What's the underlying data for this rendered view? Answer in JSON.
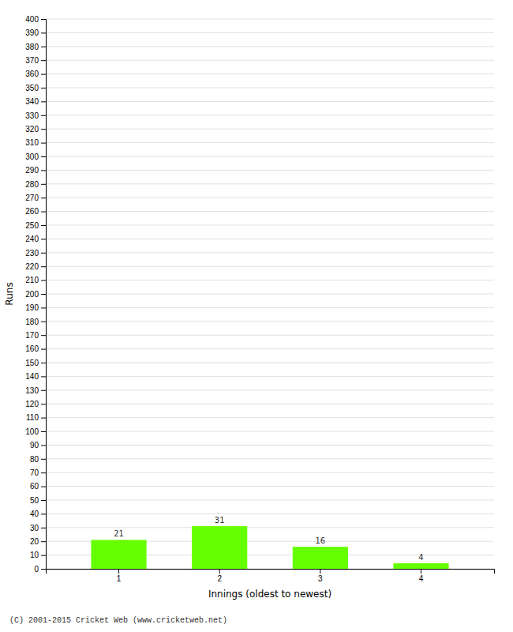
{
  "chart_data": {
    "type": "bar",
    "categories": [
      1,
      2,
      3,
      4
    ],
    "values": [
      21,
      31,
      16,
      4
    ],
    "color": "#66ff00",
    "xlabel": "Innings (oldest to newest)",
    "ylabel": "Runs",
    "ylim": [
      0,
      400
    ],
    "yticks": [
      0,
      10,
      20,
      30,
      40,
      50,
      60,
      70,
      80,
      90,
      100,
      110,
      120,
      130,
      140,
      150,
      160,
      170,
      180,
      190,
      200,
      210,
      220,
      230,
      240,
      250,
      260,
      270,
      280,
      290,
      300,
      310,
      320,
      330,
      340,
      350,
      360,
      370,
      380,
      390,
      400
    ],
    "grid": true,
    "data_labels": true,
    "annotations": [
      "(C) 2001-2015 Cricket Web (www.cricketweb.net)"
    ]
  }
}
